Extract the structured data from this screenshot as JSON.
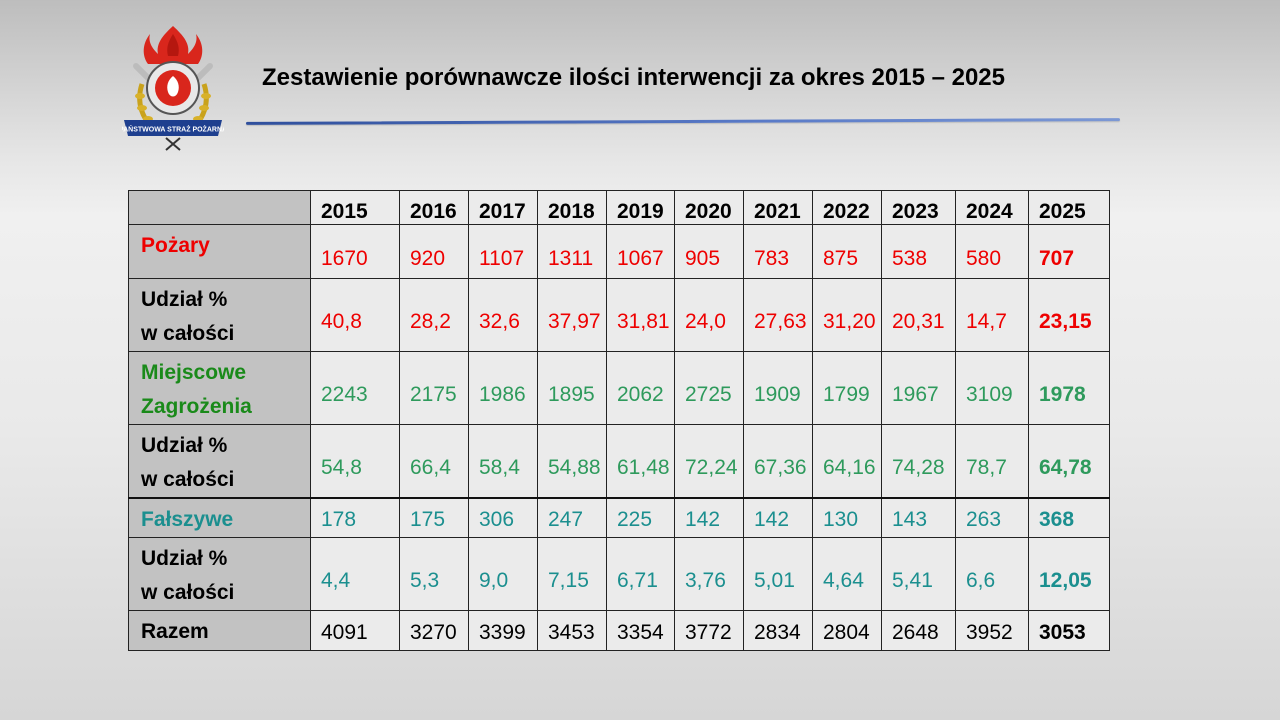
{
  "title": "Zestawienie porównawcze ilości interwencji za okres 2015 – 2025",
  "logo_text": "PAŃSTWOWA STRAŻ POŻARNA",
  "colors": {
    "fires": "#ee0000",
    "local_threats": "#2e9a5c",
    "local_threats_label": "#1a8a1a",
    "false_alarms": "#1b8f8f"
  },
  "table": {
    "years": [
      "2015",
      "2016",
      "2017",
      "2018",
      "2019",
      "2020",
      "2021",
      "2022",
      "2023",
      "2024",
      "2025"
    ],
    "rows": [
      {
        "label_lines": [
          "Pożary"
        ],
        "values": [
          "1670",
          "920",
          "1107",
          "1311",
          "1067",
          "905",
          "783",
          "875",
          "538",
          "580",
          "707"
        ]
      },
      {
        "label_lines": [
          "Udział %",
          "w całości"
        ],
        "values": [
          "40,8",
          "28,2",
          "32,6",
          "37,97",
          "31,81",
          "24,0",
          "27,63",
          "31,20",
          "20,31",
          "14,7",
          "23,15"
        ]
      },
      {
        "label_lines": [
          "Miejscowe",
          "Zagrożenia"
        ],
        "values": [
          "2243",
          "2175",
          "1986",
          "1895",
          "2062",
          "2725",
          "1909",
          "1799",
          "1967",
          "3109",
          "1978"
        ]
      },
      {
        "label_lines": [
          "Udział %",
          "w całości"
        ],
        "values": [
          "54,8",
          "66,4",
          "58,4",
          "54,88",
          "61,48",
          "72,24",
          "67,36",
          "64,16",
          "74,28",
          "78,7",
          "64,78"
        ]
      },
      {
        "label_lines": [
          "Fałszywe"
        ],
        "values": [
          "178",
          "175",
          "306",
          "247",
          "225",
          "142",
          "142",
          "130",
          "143",
          "263",
          "368"
        ]
      },
      {
        "label_lines": [
          "Udział %",
          "w całości"
        ],
        "values": [
          "4,4",
          "5,3",
          "9,0",
          "7,15",
          "6,71",
          "3,76",
          "5,01",
          "4,64",
          "5,41",
          "6,6",
          "12,05"
        ]
      },
      {
        "label_lines": [
          "Razem"
        ],
        "values": [
          "4091",
          "3270",
          "3399",
          "3453",
          "3354",
          "3772",
          "2834",
          "2804",
          "2648",
          "3952",
          "3053"
        ]
      }
    ]
  }
}
